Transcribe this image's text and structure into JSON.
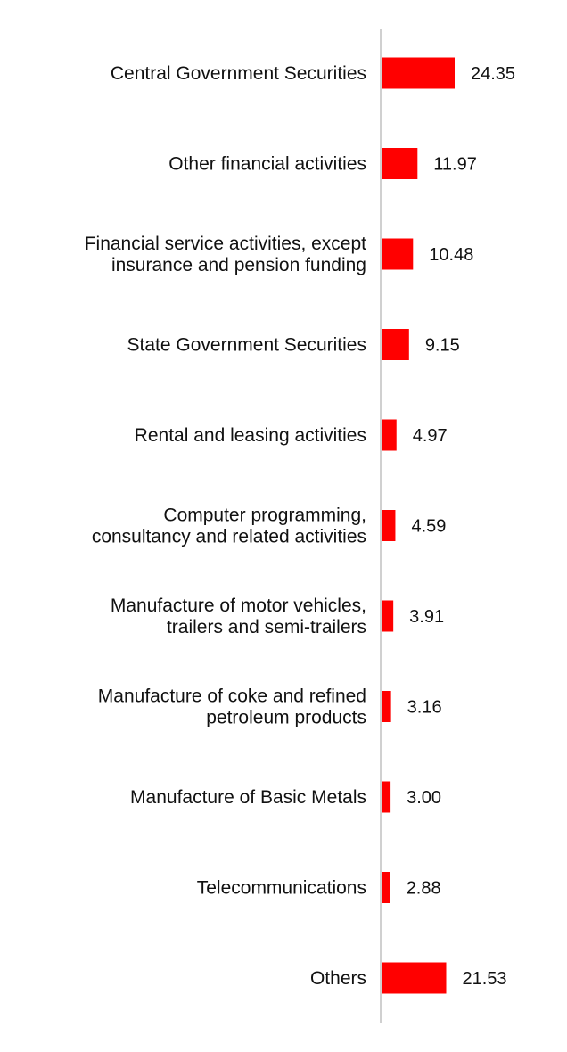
{
  "chart_data": {
    "type": "bar",
    "orientation": "horizontal",
    "categories": [
      [
        "Central Government Securities"
      ],
      [
        "Other financial activities"
      ],
      [
        "Financial service activities, except",
        "insurance and pension funding"
      ],
      [
        "State Government Securities"
      ],
      [
        "Rental and leasing activities"
      ],
      [
        "Computer programming,",
        "consultancy and related activities"
      ],
      [
        "Manufacture of motor vehicles,",
        "trailers and semi-trailers"
      ],
      [
        "Manufacture of coke and refined",
        "petroleum products"
      ],
      [
        "Manufacture of Basic Metals"
      ],
      [
        "Telecommunications"
      ],
      [
        "Others"
      ]
    ],
    "values": [
      24.35,
      11.97,
      10.48,
      9.15,
      4.97,
      4.59,
      3.91,
      3.16,
      3.0,
      2.88,
      21.53
    ],
    "value_labels": [
      "24.35",
      "11.97",
      "10.48",
      "9.15",
      "4.97",
      "4.59",
      "3.91",
      "3.16",
      "3.00",
      "2.88",
      "21.53"
    ],
    "bar_color": "#ff0000",
    "axis_color": "#d0d0d0",
    "title": "",
    "xlabel": "",
    "ylabel": "",
    "grid": false,
    "legend": "none"
  }
}
